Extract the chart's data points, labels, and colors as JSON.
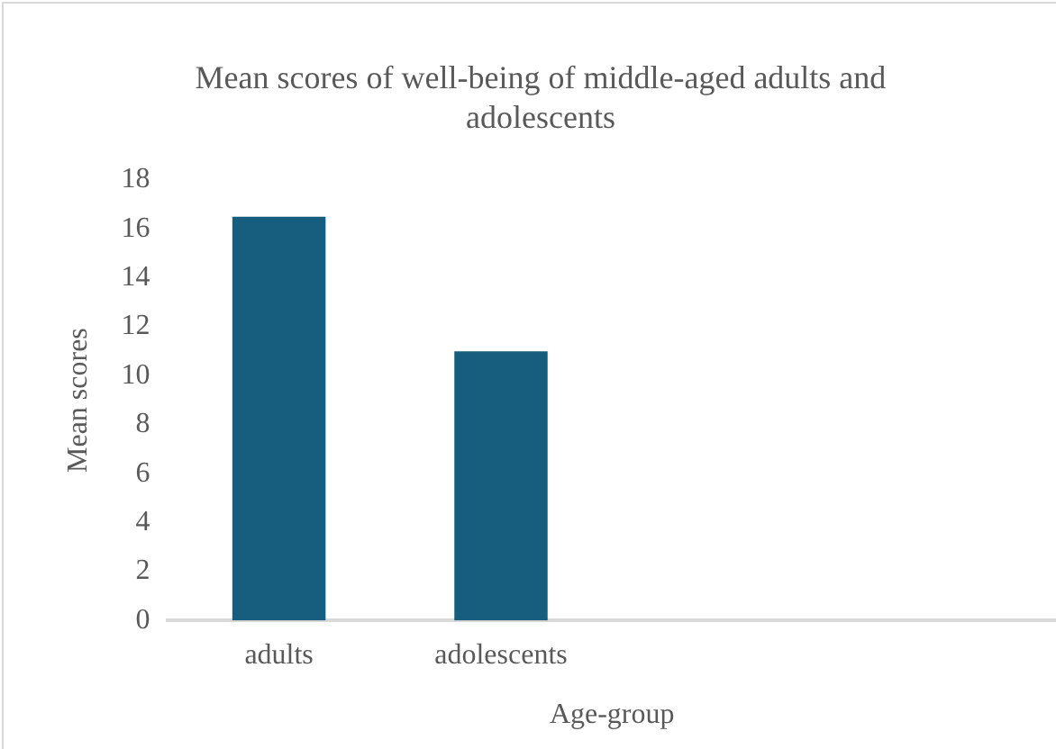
{
  "chart_data": {
    "type": "bar",
    "title": "Mean scores of well-being of middle-aged adults and adolescents",
    "xlabel": "Age-group",
    "ylabel": "Mean scores",
    "categories": [
      "adults",
      "adolescents",
      null,
      null
    ],
    "values": [
      16.5,
      11,
      null,
      null
    ],
    "color": "#175e7e",
    "ylim": [
      0,
      18
    ],
    "yticks": [
      0,
      2,
      4,
      6,
      8,
      10,
      12,
      14,
      16,
      18
    ],
    "grid": false,
    "legend": false
  }
}
